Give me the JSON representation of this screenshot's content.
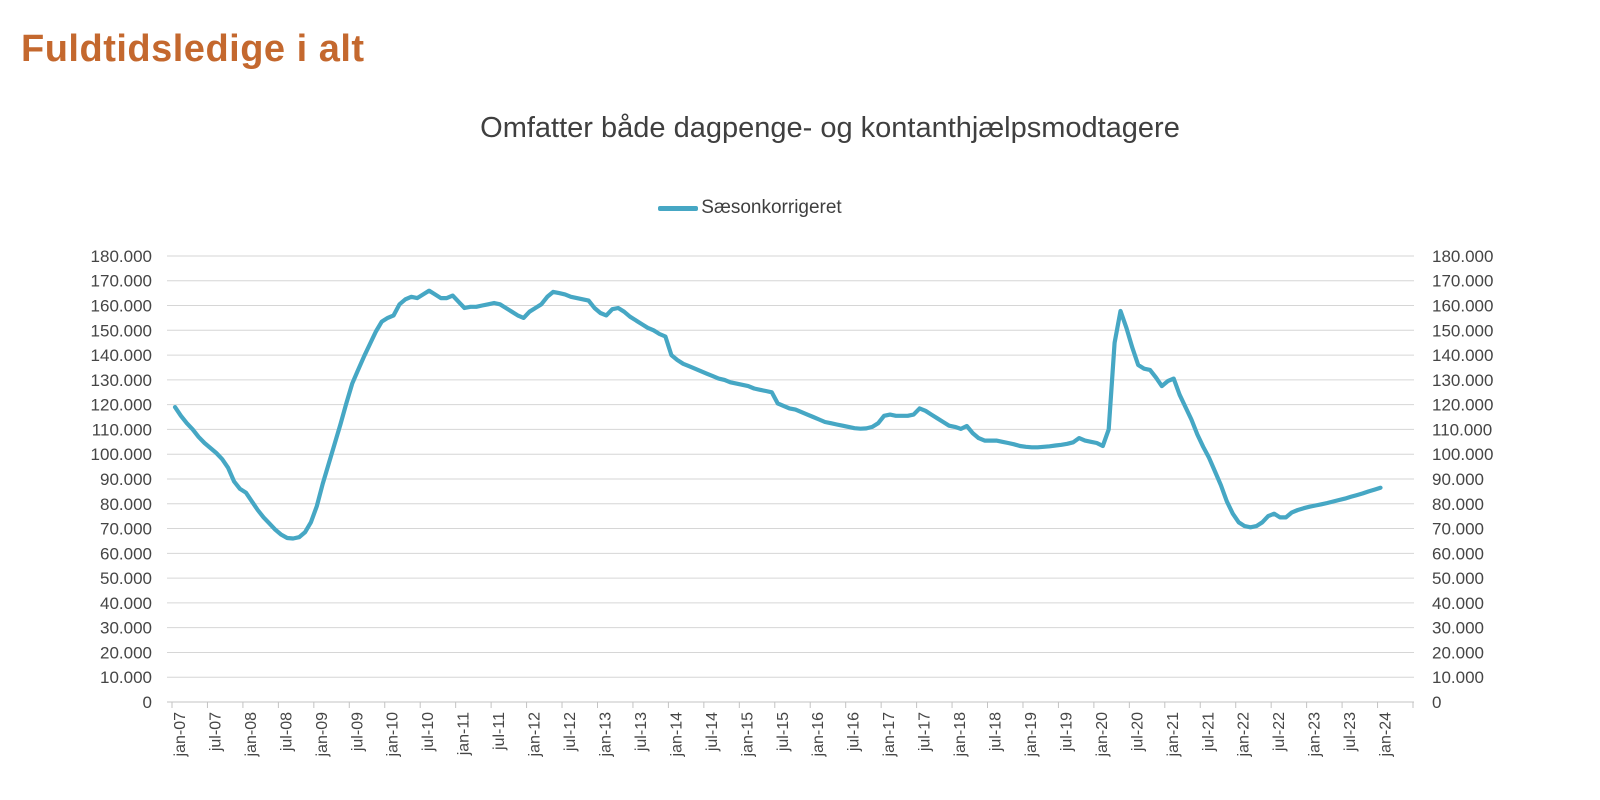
{
  "page": {
    "title": "Fuldtidsledige i alt"
  },
  "colors": {
    "accent_line": "#46A7C4",
    "title_text": "#C4682E",
    "subtitle_text": "#3F3F3F",
    "axis_text": "#454545",
    "gridline": "#D6D6D6",
    "axis_line": "#C3C3C3"
  },
  "chart_data": {
    "type": "line",
    "title": "Omfatter både dagpenge- og kontanthjælpsmodtagere",
    "legend_position": "top-center",
    "grid": "horizontal",
    "dual_y_axis": true,
    "ylim": [
      0,
      180000
    ],
    "y_tick_step": 10000,
    "y_tick_labels": [
      "0",
      "10.000",
      "20.000",
      "30.000",
      "40.000",
      "50.000",
      "60.000",
      "70.000",
      "80.000",
      "90.000",
      "100.000",
      "110.000",
      "120.000",
      "130.000",
      "140.000",
      "150.000",
      "160.000",
      "170.000",
      "180.000"
    ],
    "x_tick_labels": [
      "jan-07",
      "jul-07",
      "jan-08",
      "jul-08",
      "jan-09",
      "jul-09",
      "jan-10",
      "jul-10",
      "jan-11",
      "jul-11",
      "jan-12",
      "jul-12",
      "jan-13",
      "jul-13",
      "jan-14",
      "jul-14",
      "jan-15",
      "jul-15",
      "jan-16",
      "jul-16",
      "jan-17",
      "jul-17",
      "jan-18",
      "jul-18",
      "jan-19",
      "jul-19",
      "jan-20",
      "jul-20",
      "jan-21",
      "jul-21",
      "jan-22",
      "jul-22",
      "jan-23",
      "jul-23",
      "jan-24"
    ],
    "x": [
      "jan-07",
      "feb-07",
      "mar-07",
      "apr-07",
      "maj-07",
      "jun-07",
      "jul-07",
      "aug-07",
      "sep-07",
      "okt-07",
      "nov-07",
      "dec-07",
      "jan-08",
      "feb-08",
      "mar-08",
      "apr-08",
      "maj-08",
      "jun-08",
      "jul-08",
      "aug-08",
      "sep-08",
      "okt-08",
      "nov-08",
      "dec-08",
      "jan-09",
      "feb-09",
      "mar-09",
      "apr-09",
      "maj-09",
      "jun-09",
      "jul-09",
      "aug-09",
      "sep-09",
      "okt-09",
      "nov-09",
      "dec-09",
      "jan-10",
      "feb-10",
      "mar-10",
      "apr-10",
      "maj-10",
      "jun-10",
      "jul-10",
      "aug-10",
      "sep-10",
      "okt-10",
      "nov-10",
      "dec-10",
      "jan-11",
      "feb-11",
      "mar-11",
      "apr-11",
      "maj-11",
      "jun-11",
      "jul-11",
      "aug-11",
      "sep-11",
      "okt-11",
      "nov-11",
      "dec-11",
      "jan-12",
      "feb-12",
      "mar-12",
      "apr-12",
      "maj-12",
      "jun-12",
      "jul-12",
      "aug-12",
      "sep-12",
      "okt-12",
      "nov-12",
      "dec-12",
      "jan-13",
      "feb-13",
      "mar-13",
      "apr-13",
      "maj-13",
      "jun-13",
      "jul-13",
      "aug-13",
      "sep-13",
      "okt-13",
      "nov-13",
      "dec-13",
      "jan-14",
      "feb-14",
      "mar-14",
      "apr-14",
      "maj-14",
      "jun-14",
      "jul-14",
      "aug-14",
      "sep-14",
      "okt-14",
      "nov-14",
      "dec-14",
      "jan-15",
      "feb-15",
      "mar-15",
      "apr-15",
      "maj-15",
      "jun-15",
      "jul-15",
      "aug-15",
      "sep-15",
      "okt-15",
      "nov-15",
      "dec-15",
      "jan-16",
      "feb-16",
      "mar-16",
      "apr-16",
      "maj-16",
      "jun-16",
      "jul-16",
      "aug-16",
      "sep-16",
      "okt-16",
      "nov-16",
      "dec-16",
      "jan-17",
      "feb-17",
      "mar-17",
      "apr-17",
      "maj-17",
      "jun-17",
      "jul-17",
      "aug-17",
      "sep-17",
      "okt-17",
      "nov-17",
      "dec-17",
      "jan-18",
      "feb-18",
      "mar-18",
      "apr-18",
      "maj-18",
      "jun-18",
      "jul-18",
      "aug-18",
      "sep-18",
      "okt-18",
      "nov-18",
      "dec-18",
      "jan-19",
      "feb-19",
      "mar-19",
      "apr-19",
      "maj-19",
      "jun-19",
      "jul-19",
      "aug-19",
      "sep-19",
      "okt-19",
      "nov-19",
      "dec-19",
      "jan-20",
      "feb-20",
      "mar-20",
      "apr-20",
      "maj-20",
      "jun-20",
      "jul-20",
      "aug-20",
      "sep-20",
      "okt-20",
      "nov-20",
      "dec-20",
      "jan-21",
      "feb-21",
      "mar-21",
      "apr-21",
      "maj-21",
      "jun-21",
      "jul-21",
      "aug-21",
      "sep-21",
      "okt-21",
      "nov-21",
      "dec-21",
      "jan-22",
      "feb-22",
      "mar-22",
      "apr-22",
      "maj-22",
      "jun-22",
      "jul-22",
      "aug-22",
      "sep-22",
      "okt-22",
      "nov-22",
      "dec-22",
      "jan-23",
      "feb-23",
      "mar-23",
      "apr-23",
      "maj-23",
      "jun-23",
      "jul-23",
      "aug-23",
      "sep-23",
      "okt-23",
      "nov-23",
      "dec-23",
      "jan-24"
    ],
    "series": [
      {
        "name": "Sæsonkorrigeret",
        "color": "#46A7C4",
        "values": [
          119000,
          115500,
          112500,
          110000,
          107000,
          104500,
          102500,
          100500,
          98000,
          94500,
          89000,
          86000,
          84500,
          81000,
          77500,
          74500,
          72000,
          69500,
          67500,
          66200,
          66000,
          66500,
          68500,
          72500,
          79000,
          88000,
          96000,
          104000,
          112000,
          120500,
          128500,
          134000,
          139500,
          144500,
          149500,
          153500,
          155000,
          156000,
          160500,
          162500,
          163500,
          163000,
          164500,
          166000,
          164500,
          163000,
          163000,
          164000,
          161500,
          159000,
          159500,
          159500,
          160000,
          160500,
          161000,
          160500,
          159000,
          157500,
          156000,
          155000,
          157500,
          159000,
          160500,
          163500,
          165500,
          165000,
          164500,
          163500,
          163000,
          162500,
          162000,
          159000,
          157000,
          156000,
          158500,
          159000,
          157500,
          155500,
          154000,
          152500,
          151000,
          150000,
          148500,
          147500,
          140000,
          138000,
          136500,
          135500,
          134500,
          133500,
          132500,
          131500,
          130500,
          130000,
          129000,
          128500,
          128000,
          127500,
          126500,
          126000,
          125500,
          125000,
          120500,
          119500,
          118500,
          118000,
          117000,
          116000,
          115000,
          114000,
          113000,
          112500,
          112000,
          111500,
          111000,
          110500,
          110300,
          110400,
          111000,
          112500,
          115500,
          116000,
          115500,
          115500,
          115500,
          116000,
          118500,
          117500,
          116000,
          114500,
          113000,
          111500,
          111000,
          110200,
          111400,
          108500,
          106500,
          105500,
          105500,
          105500,
          105000,
          104500,
          104000,
          103300,
          103000,
          102800,
          102800,
          103000,
          103200,
          103500,
          103800,
          104200,
          104800,
          106500,
          105500,
          105000,
          104500,
          103300,
          110000,
          145000,
          157800,
          151000,
          143000,
          136000,
          134500,
          134000,
          131000,
          127500,
          129500,
          130500,
          124000,
          119000,
          114000,
          108000,
          103000,
          98500,
          93000,
          87500,
          81000,
          76000,
          72500,
          71000,
          70500,
          71000,
          72500,
          75000,
          76000,
          74500,
          74500,
          76500,
          77500,
          78200,
          78800,
          79300,
          79800,
          80300,
          80900,
          81500,
          82100,
          82800,
          83500,
          84200,
          85000,
          85700,
          86500
        ]
      }
    ]
  }
}
